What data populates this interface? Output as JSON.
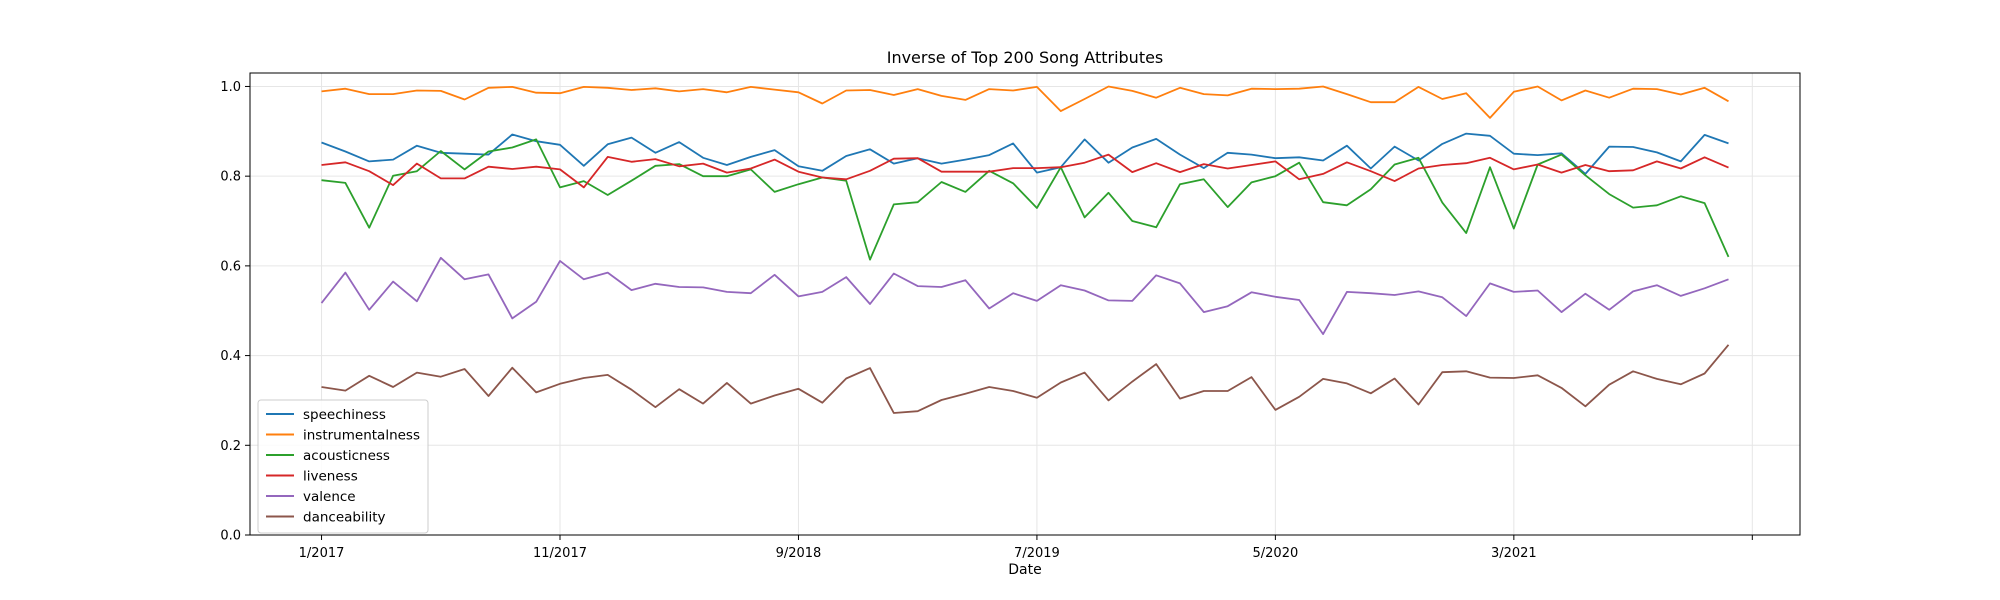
{
  "chart_data": {
    "type": "line",
    "title": "Inverse of Top 200 Song Attributes",
    "xlabel": "Date",
    "ylabel": "",
    "ylim": [
      0,
      1.03
    ],
    "yticks": [
      0.0,
      0.2,
      0.4,
      0.6,
      0.8,
      1.0
    ],
    "ytick_labels": [
      "0.0",
      "0.2",
      "0.4",
      "0.6",
      "0.8",
      "1.0"
    ],
    "xticks": [
      {
        "date": "2017-01",
        "label": "1/2017"
      },
      {
        "date": "2017-11",
        "label": "11/2017"
      },
      {
        "date": "2018-09",
        "label": "9/2018"
      },
      {
        "date": "2019-07",
        "label": "7/2019"
      },
      {
        "date": "2020-05",
        "label": "5/2020"
      },
      {
        "date": "2021-03",
        "label": "3/2021"
      },
      {
        "date": "2022-01",
        "label": ""
      }
    ],
    "xlim": [
      "2016-10",
      "2022-03"
    ],
    "x": [
      "2017-01",
      "2017-02",
      "2017-03",
      "2017-04",
      "2017-05",
      "2017-06",
      "2017-07",
      "2017-08",
      "2017-09",
      "2017-10",
      "2017-11",
      "2017-12",
      "2018-01",
      "2018-02",
      "2018-03",
      "2018-04",
      "2018-05",
      "2018-06",
      "2018-07",
      "2018-08",
      "2018-09",
      "2018-10",
      "2018-11",
      "2018-12",
      "2019-01",
      "2019-02",
      "2019-03",
      "2019-04",
      "2019-05",
      "2019-06",
      "2019-07",
      "2019-08",
      "2019-09",
      "2019-10",
      "2019-11",
      "2019-12",
      "2020-01",
      "2020-02",
      "2020-03",
      "2020-04",
      "2020-05",
      "2020-06",
      "2020-07",
      "2020-08",
      "2020-09",
      "2020-10",
      "2020-11",
      "2020-12",
      "2021-01",
      "2021-02",
      "2021-03",
      "2021-04",
      "2021-05",
      "2021-06",
      "2021-07",
      "2021-08",
      "2021-09",
      "2021-10",
      "2021-11",
      "2021-12"
    ],
    "grid": true,
    "legend_position": "lower-left",
    "series": [
      {
        "name": "speechiness",
        "color": "#1f77b4",
        "values": [
          0.875,
          0.855,
          0.833,
          0.837,
          0.868,
          0.852,
          0.85,
          0.848,
          0.893,
          0.878,
          0.87,
          0.823,
          0.871,
          0.886,
          0.852,
          0.876,
          0.841,
          0.825,
          0.843,
          0.858,
          0.822,
          0.812,
          0.845,
          0.86,
          0.828,
          0.84,
          0.828,
          0.837,
          0.847,
          0.873,
          0.808,
          0.82,
          0.882,
          0.83,
          0.864,
          0.883,
          0.848,
          0.818,
          0.852,
          0.848,
          0.84,
          0.842,
          0.835,
          0.868,
          0.817,
          0.866,
          0.835,
          0.872,
          0.895,
          0.89,
          0.85,
          0.847,
          0.851,
          0.805,
          0.866,
          0.865,
          0.853,
          0.833,
          0.892,
          0.873
        ]
      },
      {
        "name": "instrumentalness",
        "color": "#ff7f0e",
        "values": [
          0.989,
          0.995,
          0.983,
          0.983,
          0.991,
          0.99,
          0.971,
          0.997,
          0.999,
          0.986,
          0.985,
          0.999,
          0.997,
          0.992,
          0.996,
          0.989,
          0.994,
          0.987,
          0.999,
          0.993,
          0.987,
          0.962,
          0.991,
          0.992,
          0.981,
          0.994,
          0.979,
          0.97,
          0.994,
          0.991,
          0.999,
          0.945,
          0.972,
          1.0,
          0.99,
          0.975,
          0.997,
          0.983,
          0.98,
          0.995,
          0.994,
          0.995,
          1.0,
          0.983,
          0.965,
          0.965,
          0.999,
          0.972,
          0.985,
          0.93,
          0.988,
          1.0,
          0.969,
          0.991,
          0.975,
          0.995,
          0.994,
          0.982,
          0.997,
          0.967
        ]
      },
      {
        "name": "acousticness",
        "color": "#2ca02c",
        "values": [
          0.791,
          0.785,
          0.685,
          0.801,
          0.811,
          0.856,
          0.815,
          0.855,
          0.864,
          0.882,
          0.775,
          0.789,
          0.758,
          0.79,
          0.823,
          0.827,
          0.8,
          0.8,
          0.815,
          0.765,
          0.782,
          0.797,
          0.79,
          0.614,
          0.737,
          0.742,
          0.787,
          0.765,
          0.812,
          0.784,
          0.729,
          0.82,
          0.708,
          0.763,
          0.7,
          0.686,
          0.782,
          0.793,
          0.731,
          0.786,
          0.8,
          0.83,
          0.742,
          0.735,
          0.771,
          0.826,
          0.841,
          0.741,
          0.673,
          0.82,
          0.683,
          0.826,
          0.848,
          0.802,
          0.76,
          0.73,
          0.735,
          0.755,
          0.74,
          0.62
        ]
      },
      {
        "name": "liveness",
        "color": "#d62728",
        "values": [
          0.825,
          0.831,
          0.811,
          0.78,
          0.828,
          0.795,
          0.795,
          0.821,
          0.816,
          0.821,
          0.815,
          0.775,
          0.843,
          0.832,
          0.838,
          0.822,
          0.828,
          0.808,
          0.817,
          0.837,
          0.81,
          0.797,
          0.793,
          0.812,
          0.839,
          0.84,
          0.81,
          0.81,
          0.81,
          0.818,
          0.818,
          0.82,
          0.83,
          0.848,
          0.809,
          0.829,
          0.809,
          0.827,
          0.817,
          0.825,
          0.833,
          0.793,
          0.805,
          0.831,
          0.811,
          0.789,
          0.817,
          0.825,
          0.829,
          0.841,
          0.815,
          0.826,
          0.808,
          0.825,
          0.811,
          0.813,
          0.833,
          0.817,
          0.842,
          0.819
        ]
      },
      {
        "name": "valence",
        "color": "#9467bd",
        "values": [
          0.517,
          0.585,
          0.502,
          0.565,
          0.521,
          0.618,
          0.57,
          0.581,
          0.483,
          0.52,
          0.611,
          0.57,
          0.585,
          0.546,
          0.56,
          0.553,
          0.552,
          0.542,
          0.539,
          0.58,
          0.532,
          0.542,
          0.575,
          0.515,
          0.583,
          0.555,
          0.553,
          0.568,
          0.505,
          0.539,
          0.522,
          0.557,
          0.545,
          0.523,
          0.522,
          0.579,
          0.561,
          0.497,
          0.51,
          0.541,
          0.531,
          0.524,
          0.448,
          0.542,
          0.539,
          0.535,
          0.543,
          0.53,
          0.488,
          0.561,
          0.542,
          0.545,
          0.497,
          0.538,
          0.502,
          0.543,
          0.557,
          0.533,
          0.55,
          0.57
        ]
      },
      {
        "name": "danceability",
        "color": "#8c564b",
        "values": [
          0.33,
          0.322,
          0.355,
          0.33,
          0.362,
          0.353,
          0.37,
          0.31,
          0.373,
          0.318,
          0.337,
          0.35,
          0.357,
          0.324,
          0.285,
          0.325,
          0.293,
          0.339,
          0.293,
          0.311,
          0.326,
          0.295,
          0.349,
          0.372,
          0.272,
          0.276,
          0.301,
          0.315,
          0.33,
          0.321,
          0.306,
          0.34,
          0.362,
          0.3,
          0.342,
          0.381,
          0.304,
          0.321,
          0.321,
          0.352,
          0.279,
          0.308,
          0.348,
          0.338,
          0.316,
          0.349,
          0.291,
          0.363,
          0.365,
          0.351,
          0.35,
          0.356,
          0.328,
          0.287,
          0.335,
          0.365,
          0.348,
          0.336,
          0.36,
          0.424
        ]
      }
    ]
  }
}
